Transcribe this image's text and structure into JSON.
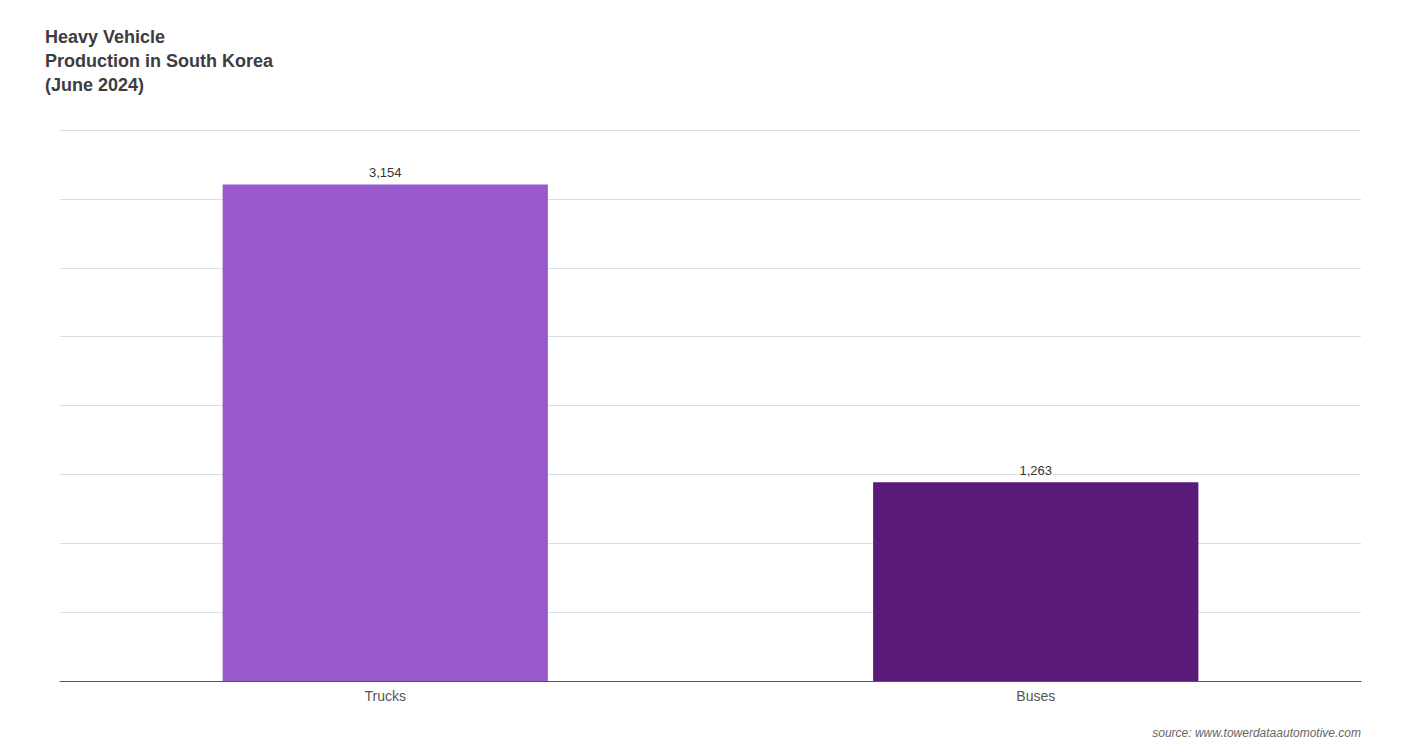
{
  "chart_data": {
    "type": "bar",
    "title": "Heavy Vehicle\nProduction in South Korea\n(June 2024)",
    "categories": [
      "Trucks",
      "Buses"
    ],
    "values": [
      3154,
      1263
    ],
    "value_labels": [
      "3,154",
      "1,263"
    ],
    "colors": [
      "#9b59d0",
      "#5a1a7a"
    ],
    "ylim": [
      0,
      3500
    ],
    "yticks": [
      0,
      437.5,
      875,
      1312.5,
      1750,
      2187.5,
      2625,
      3062.5,
      3500
    ],
    "grid": true,
    "data_labels": true,
    "tick_labels": "x",
    "annotations": [
      "source: www.towerdataautomotive.com"
    ]
  }
}
